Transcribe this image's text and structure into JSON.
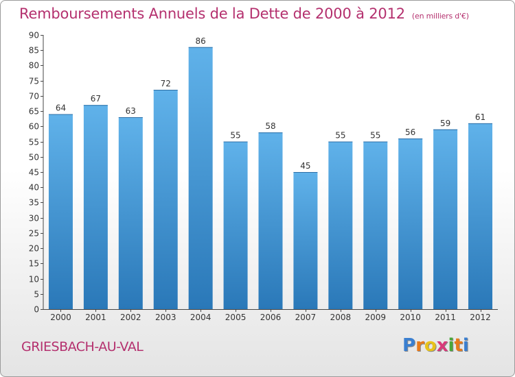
{
  "title": "Remboursements Annuels de la Dette de 2000 à 2012",
  "subtitle": "(en milliers d'€)",
  "commune": "GRIESBACH-AU-VAL",
  "logo": {
    "letters": [
      "P",
      "r",
      "o",
      "x",
      "i",
      "t",
      "i"
    ],
    "colors": [
      "#3a7fd0",
      "#e87a1a",
      "#e8c21a",
      "#d83a7a",
      "#4aa83a",
      "#e87a1a",
      "#3a7fd0"
    ]
  },
  "colors": {
    "title": "#b4306e",
    "bar_top": "#60b2ea",
    "bar_bottom": "#2a78b8",
    "axis": "#444444"
  },
  "chart_data": {
    "type": "bar",
    "categories": [
      "2000",
      "2001",
      "2002",
      "2003",
      "2004",
      "2005",
      "2006",
      "2007",
      "2008",
      "2009",
      "2010",
      "2011",
      "2012"
    ],
    "values": [
      64,
      67,
      63,
      72,
      86,
      55,
      58,
      45,
      55,
      55,
      56,
      59,
      61
    ],
    "value_labels": [
      "64",
      "67",
      "63",
      "72",
      "86",
      "55",
      "58",
      "45",
      "55",
      "55",
      "56",
      "59",
      "61"
    ],
    "ylim": [
      0,
      90
    ],
    "yticks": [
      0,
      5,
      10,
      15,
      20,
      25,
      30,
      35,
      40,
      45,
      50,
      55,
      60,
      65,
      70,
      75,
      80,
      85,
      90
    ],
    "ytick_labels": [
      "0",
      "5",
      "10",
      "15",
      "20",
      "25",
      "30",
      "35",
      "40",
      "45",
      "50",
      "55",
      "60",
      "65",
      "70",
      "75",
      "80",
      "85",
      "90"
    ],
    "grid": false,
    "xlabel": "",
    "ylabel": ""
  }
}
